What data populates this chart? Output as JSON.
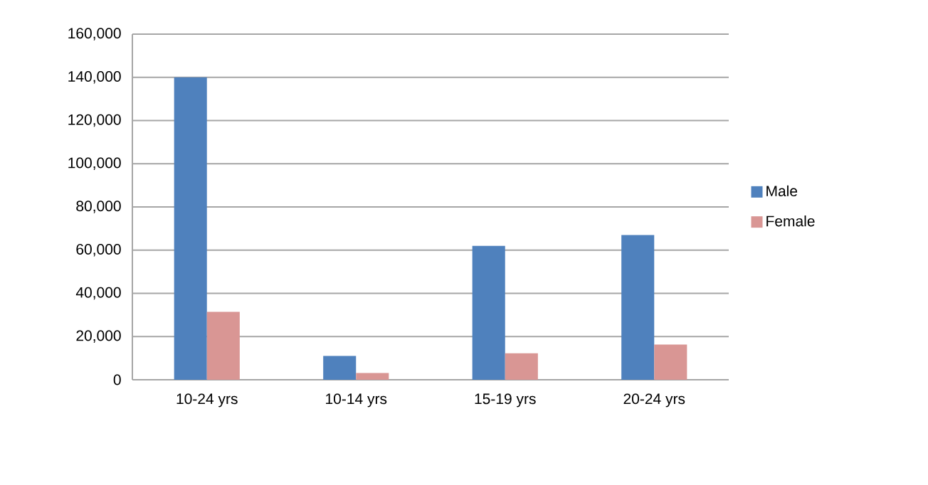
{
  "chart_data": {
    "type": "bar",
    "categories": [
      "10-24 yrs",
      "10-14 yrs",
      "15-19 yrs",
      "20-24 yrs"
    ],
    "series": [
      {
        "name": "Male",
        "color": "#4f81bd",
        "values": [
          140000,
          11000,
          62000,
          67000
        ]
      },
      {
        "name": "Female",
        "color": "#d99694",
        "values": [
          31400,
          3100,
          12300,
          16300
        ]
      }
    ],
    "ylim": [
      0,
      160000
    ],
    "yticks": [
      {
        "value": 0,
        "label": "0"
      },
      {
        "value": 20000,
        "label": "20,000"
      },
      {
        "value": 40000,
        "label": "40,000"
      },
      {
        "value": 60000,
        "label": "60,000"
      },
      {
        "value": 80000,
        "label": "80,000"
      },
      {
        "value": 100000,
        "label": "100,000"
      },
      {
        "value": 120000,
        "label": "120,000"
      },
      {
        "value": 140000,
        "label": "140,000"
      },
      {
        "value": 160000,
        "label": "160,000"
      }
    ],
    "grid": "y",
    "legend": "right"
  }
}
